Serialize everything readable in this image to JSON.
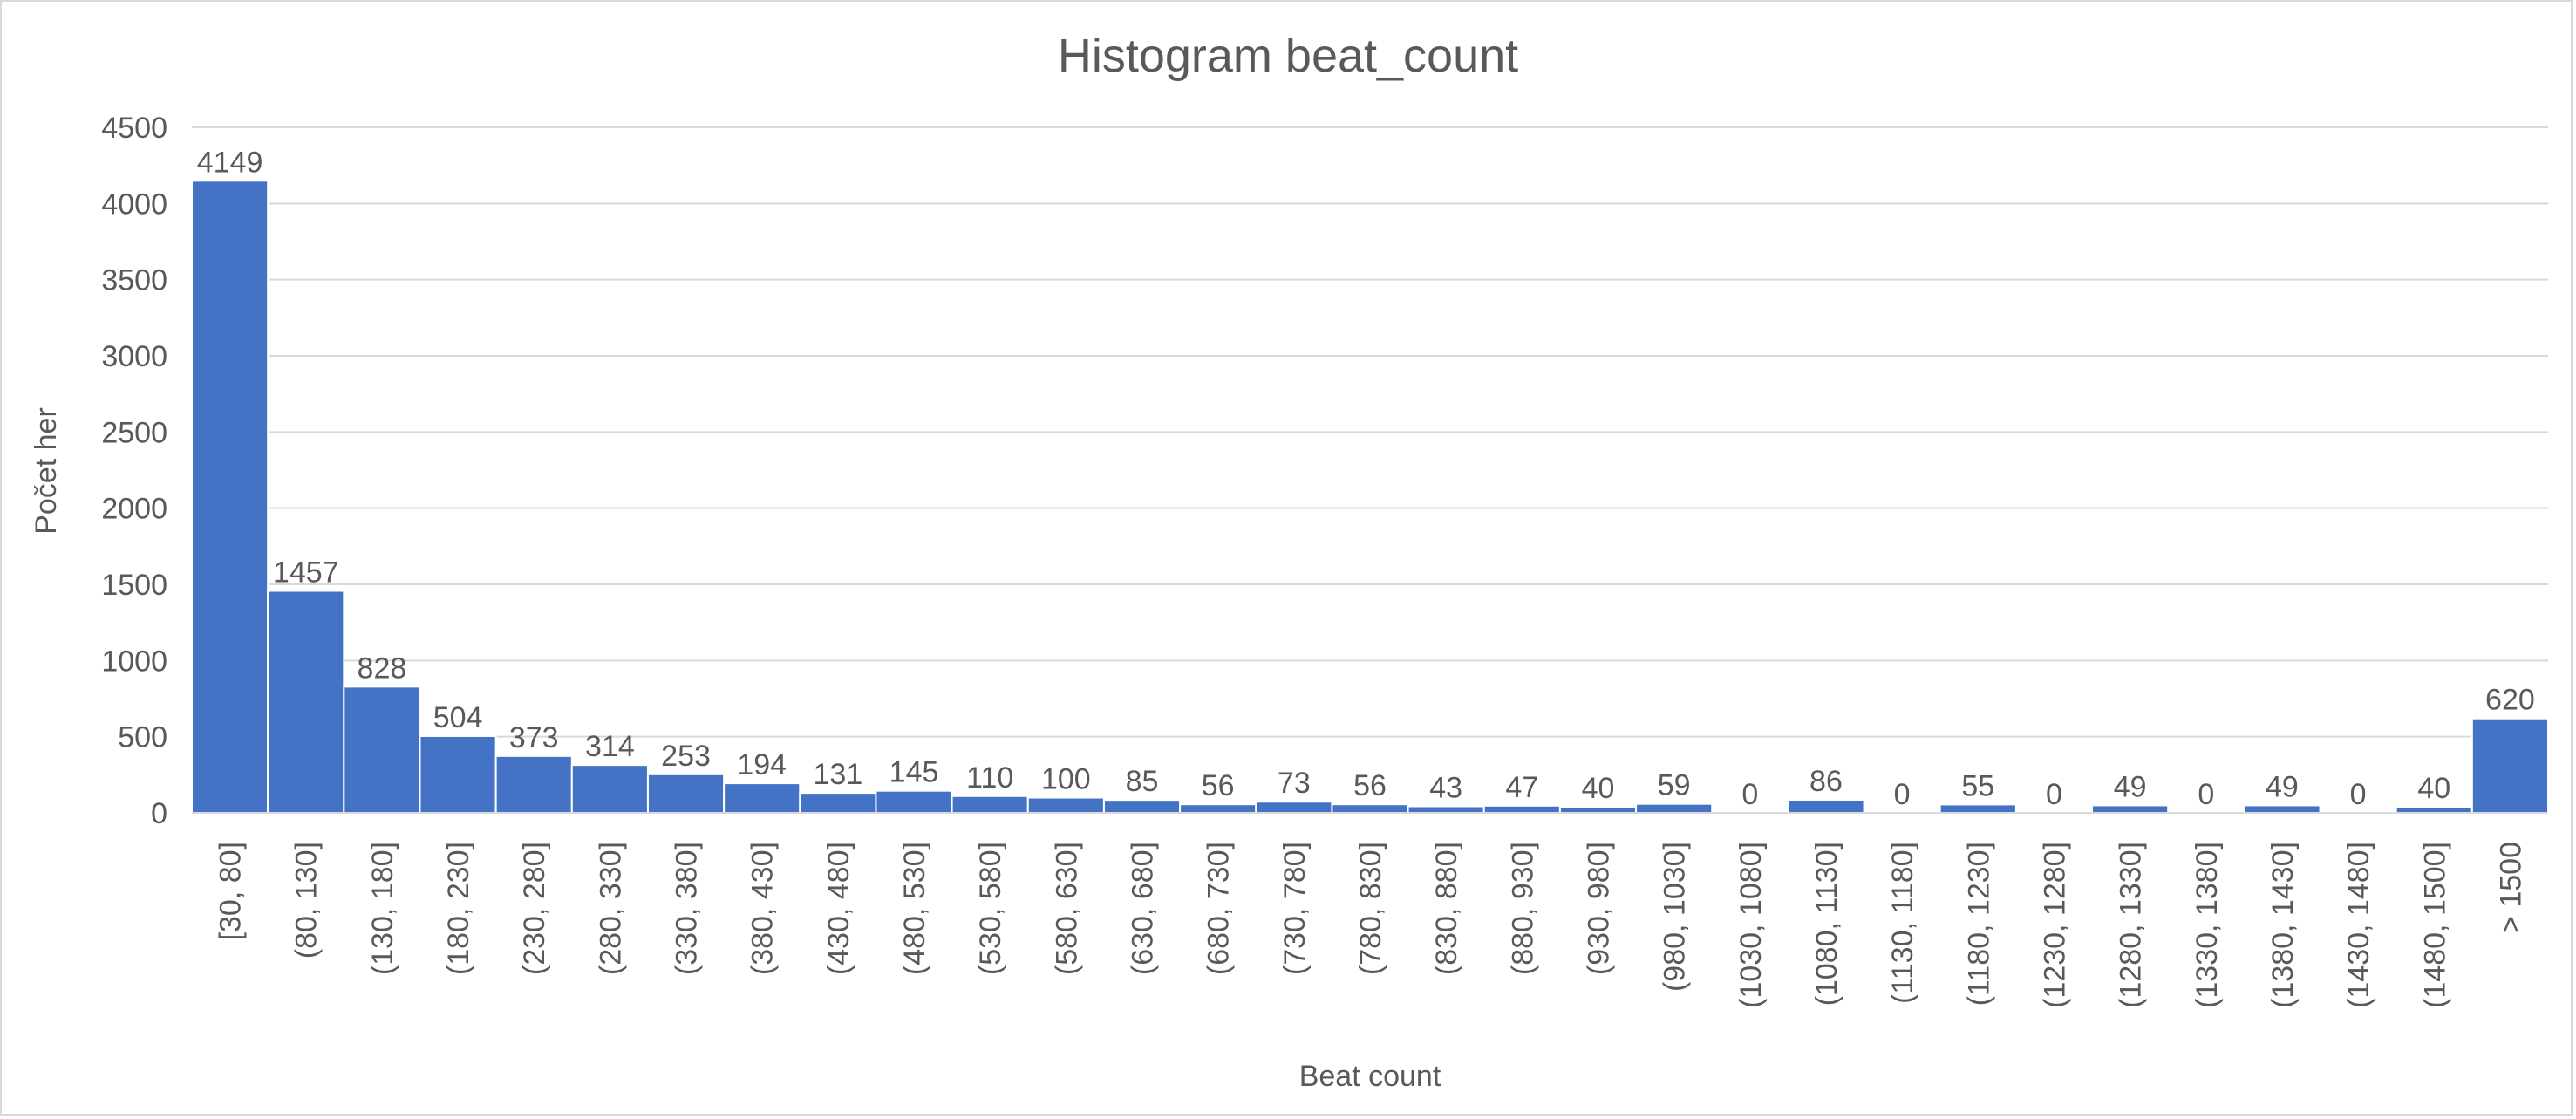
{
  "chart_data": {
    "type": "bar",
    "title": "Histogram beat_count",
    "xlabel": "Beat count",
    "ylabel": "Počet her",
    "ylim": [
      0,
      4500
    ],
    "yticks": [
      0,
      500,
      1000,
      1500,
      2000,
      2500,
      3000,
      3500,
      4000,
      4500
    ],
    "grid": true,
    "legend": "none",
    "bar_color": "#4472C4",
    "categories": [
      "[30, 80]",
      "(80, 130]",
      "(130, 180]",
      "(180, 230]",
      "(230, 280]",
      "(280, 330]",
      "(330, 380]",
      "(380, 430]",
      "(430, 480]",
      "(480, 530]",
      "(530, 580]",
      "(580, 630]",
      "(630, 680]",
      "(680, 730]",
      "(730, 780]",
      "(780, 830]",
      "(830, 880]",
      "(880, 930]",
      "(930, 980]",
      "(980, 1030]",
      "(1030, 1080]",
      "(1080, 1130]",
      "(1130, 1180]",
      "(1180, 1230]",
      "(1230, 1280]",
      "(1280, 1330]",
      "(1330, 1380]",
      "(1380, 1430]",
      "(1430, 1480]",
      "(1480, 1500]",
      "> 1500"
    ],
    "values": [
      4149,
      1457,
      828,
      504,
      373,
      314,
      253,
      194,
      131,
      145,
      110,
      100,
      85,
      56,
      73,
      56,
      43,
      47,
      40,
      59,
      0,
      86,
      0,
      55,
      0,
      49,
      0,
      49,
      0,
      40,
      620
    ]
  }
}
